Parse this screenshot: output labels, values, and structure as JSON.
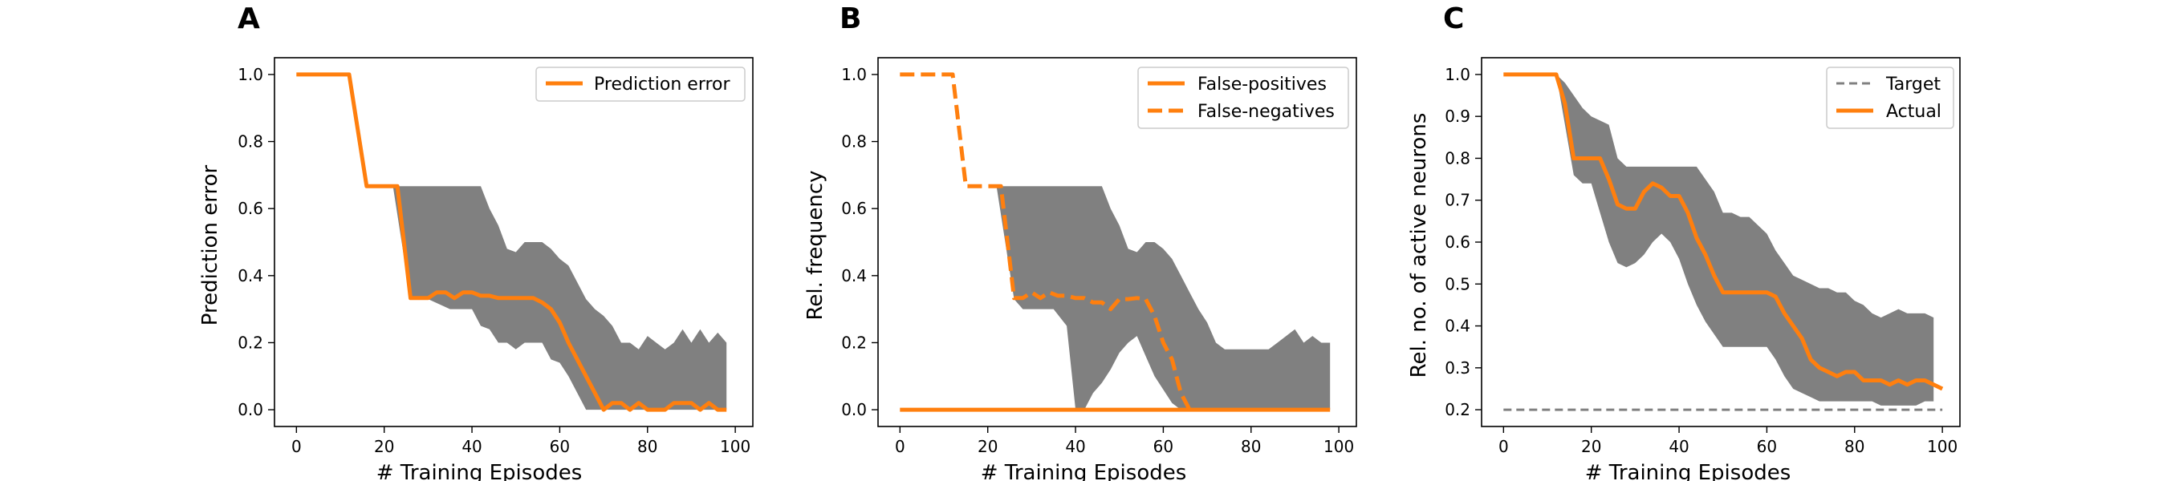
{
  "chart_data": [
    {
      "panel": "A",
      "type": "line",
      "xlabel": "# Training Episodes",
      "ylabel": "Prediction error",
      "xlim": [
        -5,
        104
      ],
      "ylim": [
        -0.05,
        1.05
      ],
      "xticks": [
        0,
        20,
        40,
        60,
        80,
        100
      ],
      "yticks": [
        0.0,
        0.2,
        0.4,
        0.6,
        0.8,
        1.0
      ],
      "legend": {
        "position": "top-right"
      },
      "band": {
        "color": "#808080",
        "x": [
          22,
          26,
          28,
          30,
          35,
          40,
          42,
          44,
          46,
          48,
          50,
          52,
          54,
          56,
          58,
          60,
          62,
          64,
          66,
          68,
          70,
          72,
          74,
          76,
          78,
          80,
          82,
          84,
          86,
          88,
          90,
          92,
          94,
          96,
          98
        ],
        "upper": [
          0.667,
          0.667,
          0.667,
          0.667,
          0.667,
          0.667,
          0.667,
          0.6,
          0.55,
          0.48,
          0.47,
          0.5,
          0.5,
          0.5,
          0.48,
          0.45,
          0.43,
          0.38,
          0.33,
          0.3,
          0.28,
          0.25,
          0.2,
          0.2,
          0.18,
          0.22,
          0.2,
          0.18,
          0.2,
          0.24,
          0.2,
          0.24,
          0.2,
          0.23,
          0.2
        ],
        "lower": [
          0.667,
          0.33,
          0.33,
          0.33,
          0.3,
          0.3,
          0.25,
          0.24,
          0.2,
          0.2,
          0.18,
          0.2,
          0.2,
          0.2,
          0.15,
          0.14,
          0.1,
          0.05,
          0.0,
          0.0,
          0.0,
          0.0,
          0.0,
          0.0,
          0.0,
          0.0,
          0.0,
          0.0,
          0.0,
          0.0,
          0.0,
          0.0,
          0.0,
          0.0,
          0.0
        ]
      },
      "series": [
        {
          "name": "Prediction error",
          "color": "#ff7f0e",
          "style": "solid",
          "x": [
            0,
            12,
            16,
            23,
            26,
            28,
            30,
            32,
            34,
            36,
            38,
            40,
            42,
            44,
            46,
            48,
            50,
            52,
            54,
            56,
            58,
            60,
            62,
            64,
            66,
            68,
            70,
            72,
            74,
            76,
            78,
            80,
            82,
            84,
            86,
            88,
            90,
            92,
            94,
            96,
            98
          ],
          "y": [
            1.0,
            1.0,
            0.667,
            0.667,
            0.333,
            0.333,
            0.333,
            0.35,
            0.35,
            0.333,
            0.35,
            0.35,
            0.34,
            0.34,
            0.333,
            0.333,
            0.333,
            0.333,
            0.333,
            0.32,
            0.3,
            0.26,
            0.2,
            0.15,
            0.1,
            0.05,
            0.0,
            0.02,
            0.02,
            0.0,
            0.02,
            0.0,
            0.0,
            0.0,
            0.02,
            0.02,
            0.02,
            0.0,
            0.02,
            0.0,
            0.0
          ]
        }
      ]
    },
    {
      "panel": "B",
      "type": "line",
      "xlabel": "# Training Episodes",
      "ylabel": "Rel. frequency",
      "xlim": [
        -5,
        104
      ],
      "ylim": [
        -0.05,
        1.05
      ],
      "xticks": [
        0,
        20,
        40,
        60,
        80,
        100
      ],
      "yticks": [
        0.0,
        0.2,
        0.4,
        0.6,
        0.8,
        1.0
      ],
      "legend": {
        "position": "top-right"
      },
      "band": {
        "color": "#808080",
        "x": [
          22,
          26,
          28,
          30,
          35,
          38,
          40,
          42,
          44,
          46,
          48,
          50,
          52,
          54,
          56,
          58,
          60,
          62,
          64,
          66,
          68,
          70,
          72,
          74,
          76,
          78,
          80,
          82,
          84,
          86,
          88,
          90,
          92,
          94,
          96,
          98
        ],
        "upper": [
          0.667,
          0.667,
          0.667,
          0.667,
          0.667,
          0.667,
          0.667,
          0.667,
          0.667,
          0.667,
          0.6,
          0.55,
          0.48,
          0.47,
          0.5,
          0.5,
          0.48,
          0.45,
          0.4,
          0.35,
          0.3,
          0.26,
          0.2,
          0.18,
          0.18,
          0.18,
          0.18,
          0.18,
          0.18,
          0.2,
          0.22,
          0.24,
          0.2,
          0.22,
          0.2,
          0.2
        ],
        "lower": [
          0.667,
          0.33,
          0.3,
          0.3,
          0.3,
          0.25,
          0.0,
          0.0,
          0.05,
          0.08,
          0.12,
          0.17,
          0.2,
          0.22,
          0.16,
          0.1,
          0.06,
          0.02,
          0.0,
          0.0,
          0.0,
          0.0,
          0.0,
          0.0,
          0.0,
          0.0,
          0.0,
          0.0,
          0.0,
          0.0,
          0.0,
          0.0,
          0.0,
          0.0,
          0.0,
          0.0
        ]
      },
      "series": [
        {
          "name": "False-positives",
          "color": "#ff7f0e",
          "style": "solid",
          "x": [
            0,
            98
          ],
          "y": [
            0.0,
            0.0
          ]
        },
        {
          "name": "False-negatives",
          "color": "#ff7f0e",
          "style": "dashed",
          "x": [
            0,
            12,
            15,
            23,
            26,
            28,
            30,
            32,
            34,
            36,
            38,
            40,
            42,
            44,
            46,
            48,
            50,
            52,
            54,
            56,
            58,
            60,
            62,
            64,
            66,
            67
          ],
          "y": [
            1.0,
            1.0,
            0.667,
            0.667,
            0.333,
            0.333,
            0.35,
            0.333,
            0.35,
            0.34,
            0.34,
            0.333,
            0.333,
            0.32,
            0.32,
            0.3,
            0.33,
            0.33,
            0.333,
            0.33,
            0.28,
            0.2,
            0.15,
            0.05,
            0.0,
            0.0
          ]
        }
      ]
    },
    {
      "panel": "C",
      "type": "line",
      "xlabel": "# Training Episodes",
      "ylabel": "Rel. no. of active neurons",
      "xlim": [
        -5,
        104
      ],
      "ylim": [
        0.16,
        1.04
      ],
      "xticks": [
        0,
        20,
        40,
        60,
        80,
        100
      ],
      "yticks": [
        0.2,
        0.3,
        0.4,
        0.5,
        0.6,
        0.7,
        0.8,
        0.9,
        1.0
      ],
      "legend": {
        "position": "top-right"
      },
      "band": {
        "color": "#808080",
        "x": [
          12,
          14,
          16,
          18,
          20,
          22,
          24,
          26,
          28,
          30,
          32,
          34,
          36,
          38,
          40,
          42,
          44,
          46,
          48,
          50,
          52,
          54,
          56,
          58,
          60,
          62,
          64,
          66,
          68,
          70,
          72,
          74,
          76,
          78,
          80,
          82,
          84,
          86,
          88,
          90,
          92,
          94,
          96,
          98
        ],
        "upper": [
          1.0,
          0.98,
          0.95,
          0.92,
          0.9,
          0.89,
          0.88,
          0.8,
          0.78,
          0.78,
          0.78,
          0.78,
          0.78,
          0.78,
          0.78,
          0.78,
          0.78,
          0.75,
          0.72,
          0.67,
          0.67,
          0.66,
          0.66,
          0.64,
          0.62,
          0.58,
          0.55,
          0.52,
          0.51,
          0.5,
          0.49,
          0.49,
          0.48,
          0.48,
          0.46,
          0.45,
          0.43,
          0.42,
          0.43,
          0.44,
          0.43,
          0.43,
          0.43,
          0.42
        ],
        "lower": [
          1.0,
          0.88,
          0.76,
          0.74,
          0.74,
          0.67,
          0.6,
          0.55,
          0.54,
          0.55,
          0.57,
          0.6,
          0.62,
          0.6,
          0.56,
          0.5,
          0.45,
          0.41,
          0.38,
          0.35,
          0.35,
          0.35,
          0.35,
          0.35,
          0.35,
          0.32,
          0.28,
          0.25,
          0.24,
          0.23,
          0.22,
          0.22,
          0.22,
          0.22,
          0.22,
          0.22,
          0.22,
          0.21,
          0.21,
          0.21,
          0.21,
          0.21,
          0.22,
          0.22
        ]
      },
      "series": [
        {
          "name": "Target",
          "color": "#808080",
          "style": "dashed",
          "x": [
            0,
            100
          ],
          "y": [
            0.2,
            0.2
          ]
        },
        {
          "name": "Actual",
          "color": "#ff7f0e",
          "style": "solid",
          "x": [
            0,
            12,
            14,
            16,
            18,
            20,
            22,
            24,
            26,
            28,
            30,
            32,
            34,
            36,
            38,
            40,
            42,
            44,
            46,
            48,
            50,
            52,
            54,
            56,
            58,
            60,
            62,
            64,
            66,
            68,
            70,
            72,
            74,
            76,
            78,
            80,
            82,
            84,
            86,
            88,
            90,
            92,
            94,
            96,
            98,
            100
          ],
          "y": [
            1.0,
            1.0,
            0.93,
            0.8,
            0.8,
            0.8,
            0.8,
            0.75,
            0.69,
            0.68,
            0.68,
            0.72,
            0.74,
            0.73,
            0.71,
            0.71,
            0.67,
            0.61,
            0.57,
            0.52,
            0.48,
            0.48,
            0.48,
            0.48,
            0.48,
            0.48,
            0.47,
            0.43,
            0.4,
            0.37,
            0.32,
            0.3,
            0.29,
            0.28,
            0.29,
            0.29,
            0.27,
            0.27,
            0.27,
            0.26,
            0.27,
            0.26,
            0.27,
            0.27,
            0.26,
            0.25
          ]
        }
      ]
    }
  ]
}
